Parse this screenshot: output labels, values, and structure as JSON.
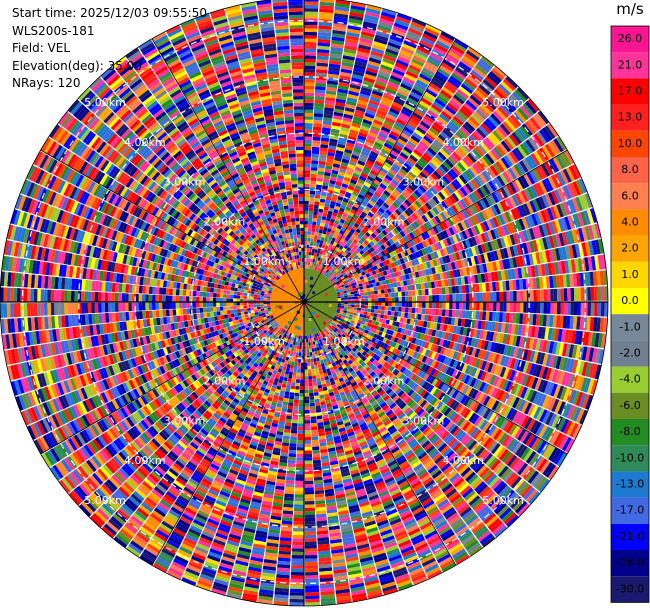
{
  "info": {
    "start_time": "Start time: 2025/12/03 09:55:50",
    "instrument": "WLS200s-181",
    "field": "Field: VEL",
    "elevation": "Elevation(deg): 35.00",
    "nrays": "NRays: 120"
  },
  "colorbar": {
    "unit": "m/s",
    "ticks": [
      "26.0",
      "21.0",
      "17.0",
      "13.0",
      "10.0",
      "8.0",
      "6.0",
      "4.0",
      "2.0",
      "1.0",
      "0.0",
      "-1.0",
      "-2.0",
      "-4.0",
      "-6.0",
      "-8.0",
      "-10.0",
      "-13.0",
      "-17.0",
      "-21.0",
      "-26.0",
      "-30.0"
    ],
    "colors": [
      "#ff1493",
      "#ff3399",
      "#ff0000",
      "#ff2020",
      "#ff4500",
      "#ff6347",
      "#ff7f50",
      "#ff8c00",
      "#ffa500",
      "#ffd700",
      "#ffff00",
      "#778899",
      "#708090",
      "#9acd32",
      "#6b8e23",
      "#228b22",
      "#2e8b57",
      "#1e7ad0",
      "#4169e1",
      "#0000ff",
      "#00008b",
      "#191970"
    ]
  },
  "chart_data": {
    "type": "heatmap",
    "projection": "polar-ppi",
    "field": "VEL",
    "units": "m/s",
    "nrays": 120,
    "elevation_deg": 35.0,
    "value_range": [
      -30,
      26
    ],
    "range_rings_km": [
      1.0,
      2.0,
      3.0,
      4.0,
      5.0
    ],
    "ring_labels": [
      "1.00km",
      "2.00km",
      "3.00km",
      "4.00km",
      "5.00km"
    ],
    "max_range_km": 5.4,
    "near_field": {
      "range_km": 0.6,
      "east_value": -6.0,
      "west_value": 4.0
    }
  }
}
